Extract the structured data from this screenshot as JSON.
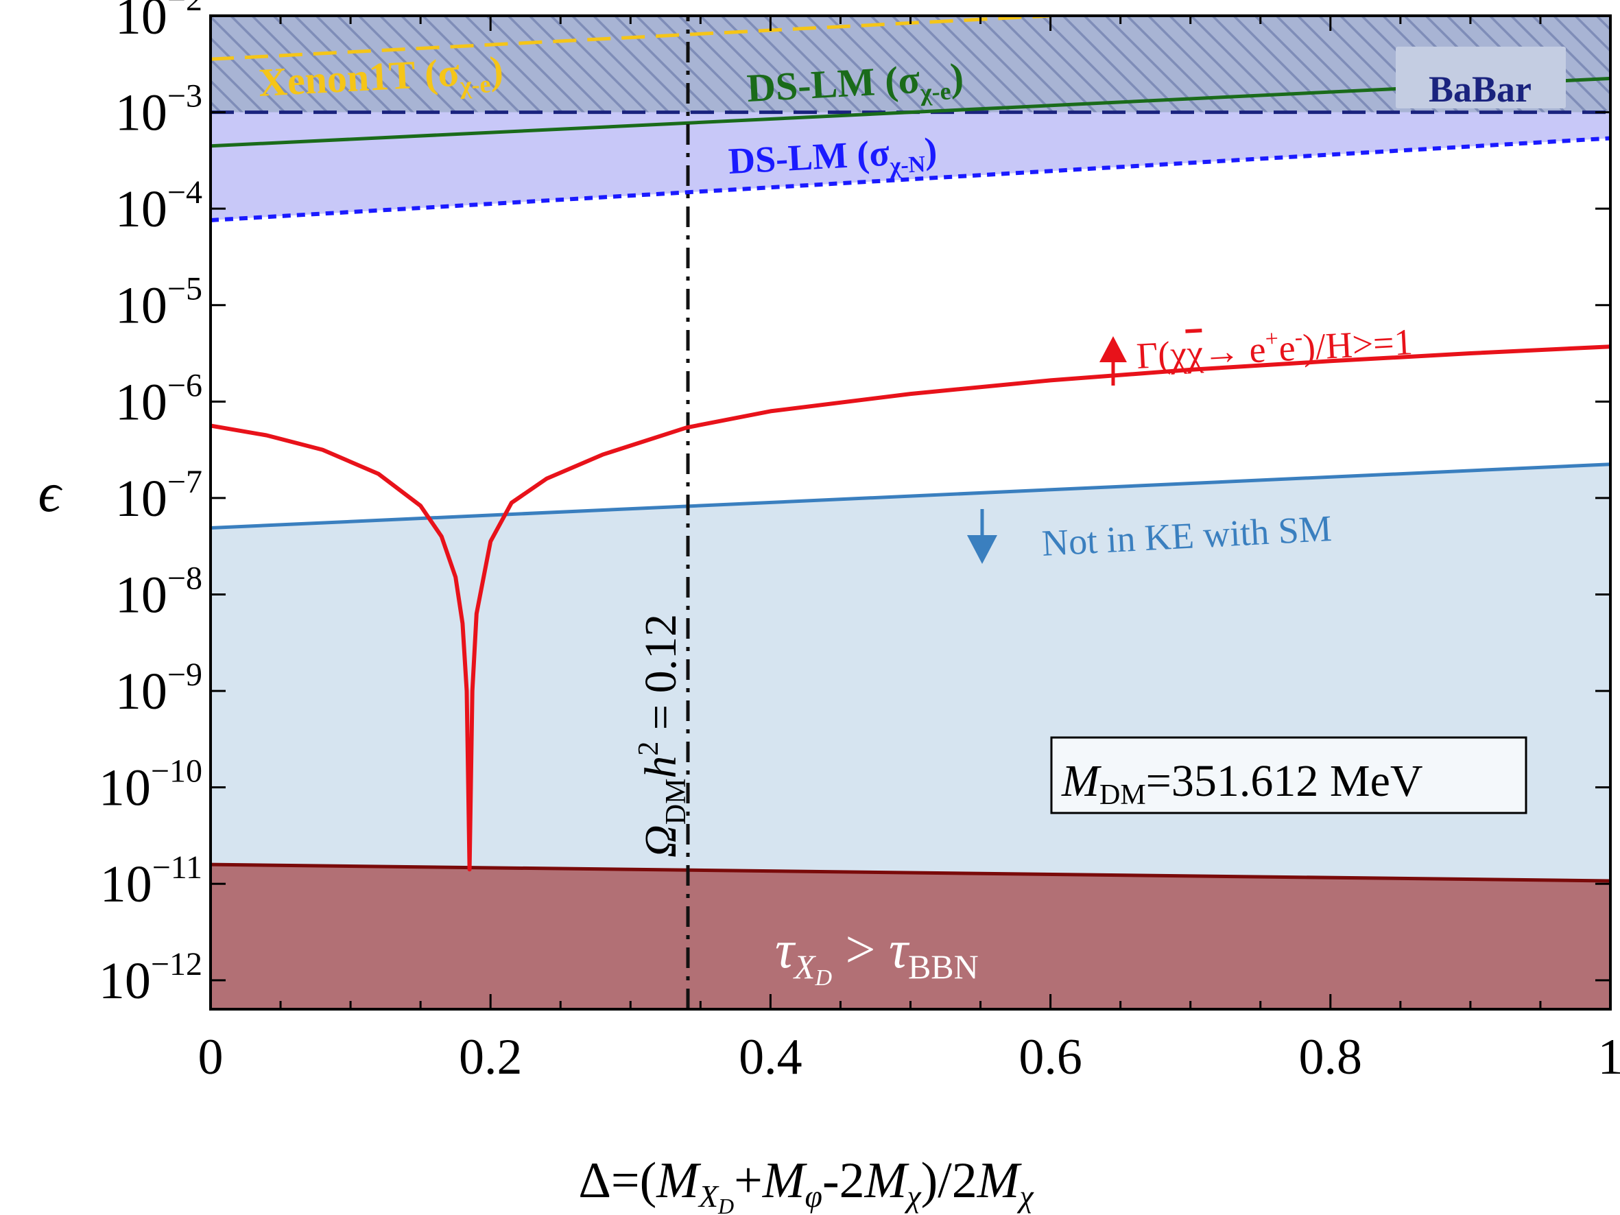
{
  "chart_data": {
    "type": "line",
    "xlabel": {
      "prefix": "Δ=(",
      "t1": "M",
      "s1": "X",
      "s1b": "D",
      "plus1": "+",
      "t2": "M",
      "s2": "φ",
      "mid": "-2",
      "t3": "M",
      "s3": "χ",
      "close": ")/2",
      "t4": "M",
      "s4": "χ"
    },
    "ylabel": "ϵ",
    "xlim": [
      0,
      1
    ],
    "ylim_log10": [
      -12.3,
      -2
    ],
    "yscale": "log",
    "x_ticks": [
      {
        "value": 0,
        "label": "0"
      },
      {
        "value": 0.2,
        "label": "0.2"
      },
      {
        "value": 0.4,
        "label": "0.4"
      },
      {
        "value": 0.6,
        "label": "0.6"
      },
      {
        "value": 0.8,
        "label": "0.8"
      },
      {
        "value": 1,
        "label": "1"
      }
    ],
    "y_ticks": [
      {
        "exp": -2,
        "base": "10",
        "sup": "−2"
      },
      {
        "exp": -3,
        "base": "10",
        "sup": "−3"
      },
      {
        "exp": -4,
        "base": "10",
        "sup": "−4"
      },
      {
        "exp": -5,
        "base": "10",
        "sup": "−5"
      },
      {
        "exp": -6,
        "base": "10",
        "sup": "−6"
      },
      {
        "exp": -7,
        "base": "10",
        "sup": "−7"
      },
      {
        "exp": -8,
        "base": "10",
        "sup": "−8"
      },
      {
        "exp": -9,
        "base": "10",
        "sup": "−9"
      },
      {
        "exp": -10,
        "base": "10",
        "sup": "−10"
      },
      {
        "exp": -11,
        "base": "10",
        "sup": "−11"
      },
      {
        "exp": -12,
        "base": "10",
        "sup": "−12"
      }
    ],
    "series": [
      {
        "key": "xenon",
        "color": "#f5c518",
        "style": "dashed",
        "x": [
          0,
          0.6
        ],
        "log10_y": [
          -2.45,
          -2.0
        ]
      },
      {
        "key": "dslm_e",
        "color": "#1a6b1a",
        "style": "solid",
        "x": [
          0,
          1
        ],
        "log10_y": [
          -3.35,
          -2.65
        ]
      },
      {
        "key": "babar",
        "color": "#1a237e",
        "style": "dashed",
        "x": [
          0,
          1
        ],
        "log10_y": [
          -3.0,
          -3.0
        ]
      },
      {
        "key": "dslm_n",
        "color": "#1a1aff",
        "style": "dotted",
        "x": [
          0,
          1
        ],
        "log10_y": [
          -4.12,
          -3.27
        ]
      },
      {
        "key": "gamma_over_h",
        "color": "#e8121a",
        "style": "solid",
        "x": [
          0,
          0.04,
          0.08,
          0.12,
          0.15,
          0.165,
          0.175,
          0.18,
          0.183,
          0.185,
          0.187,
          0.19,
          0.2,
          0.215,
          0.24,
          0.28,
          0.34,
          0.4,
          0.5,
          0.6,
          0.7,
          0.8,
          0.9,
          1.0
        ],
        "log10_y": [
          -6.25,
          -6.35,
          -6.5,
          -6.75,
          -7.08,
          -7.4,
          -7.82,
          -8.3,
          -9.0,
          -10.85,
          -9.0,
          -8.2,
          -7.45,
          -7.05,
          -6.8,
          -6.55,
          -6.27,
          -6.1,
          -5.92,
          -5.78,
          -5.67,
          -5.58,
          -5.5,
          -5.43
        ]
      },
      {
        "key": "ke_with_sm",
        "color": "#3a7fbf",
        "style": "solid",
        "x": [
          0,
          1
        ],
        "log10_y": [
          -7.31,
          -6.65
        ]
      },
      {
        "key": "bbn",
        "color": "#7a0a0a",
        "style": "solid",
        "x": [
          0,
          1
        ],
        "log10_y": [
          -10.8,
          -10.97
        ]
      },
      {
        "key": "omega",
        "color": "#111111",
        "style": "dashdot",
        "x": [
          0.341,
          0.341
        ],
        "log10_y": [
          -12.3,
          -2
        ]
      }
    ],
    "annotations": {
      "xenon": {
        "main": "Xenon1T (σ",
        "sub": "χ-e",
        "close": ")"
      },
      "dslm_e": {
        "main": "DS-LM (σ",
        "sub": "χ-e",
        "close": ")"
      },
      "dslm_n": {
        "main": "DS-LM (σ",
        "sub": "χ-N",
        "close": ")"
      },
      "babar": "BaBar",
      "gamma": {
        "g": "Γ(",
        "chi": "χ",
        "chibar": "χ",
        "arrow": "→ e",
        "sup1": "+",
        "e2": "e",
        "sup2": "-",
        "rest": ")/H>=1"
      },
      "ke": "Not in KE with SM",
      "bbn": {
        "tau1": "τ",
        "sub1": "X",
        "sub1b": "D",
        "gt": " > ",
        "tau2": "τ",
        "sub2": "BBN"
      },
      "omega": {
        "omega": "Ω",
        "sub": "DM",
        "h": "h",
        "sup": "2",
        "eq": " = 0.12"
      },
      "mdm": {
        "m": "M",
        "sub": "DM",
        "val": "=351.612 MeV"
      }
    },
    "colors": {
      "blue_band": "#c8c8f8",
      "hatch_bg": "#a8b4d4",
      "hatch_line": "#7f8db8",
      "ke_region": "#d6e4f0",
      "bbn_region": "#b27075",
      "babar_label_bg": "#c4cde2",
      "mdm_box_bg": "#f4f8fb"
    }
  }
}
